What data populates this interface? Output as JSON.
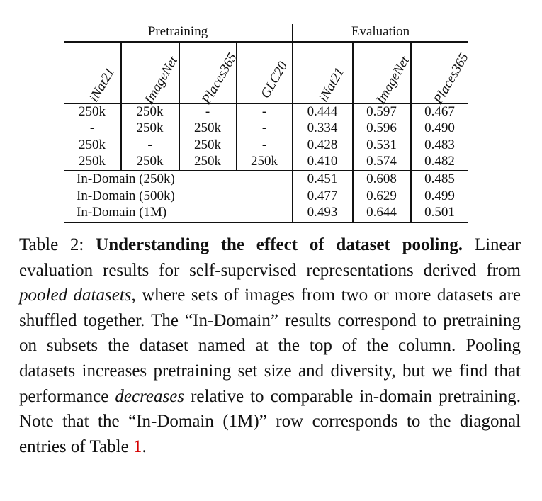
{
  "table": {
    "group_headers": {
      "pretraining": "Pretraining",
      "evaluation": "Evaluation"
    },
    "pretraining_columns": [
      "iNat21",
      "ImageNet",
      "Places365",
      "GLC20"
    ],
    "evaluation_columns": [
      "iNat21",
      "ImageNet",
      "Places365"
    ],
    "pooled_rows": [
      {
        "pretrain": [
          "250k",
          "250k",
          "-",
          "-"
        ],
        "eval": [
          "0.444",
          "0.597",
          "0.467"
        ]
      },
      {
        "pretrain": [
          "-",
          "250k",
          "250k",
          "-"
        ],
        "eval": [
          "0.334",
          "0.596",
          "0.490"
        ]
      },
      {
        "pretrain": [
          "250k",
          "-",
          "250k",
          "-"
        ],
        "eval": [
          "0.428",
          "0.531",
          "0.483"
        ]
      },
      {
        "pretrain": [
          "250k",
          "250k",
          "250k",
          "250k"
        ],
        "eval": [
          "0.410",
          "0.574",
          "0.482"
        ]
      }
    ],
    "in_domain_rows": [
      {
        "label": "In-Domain (250k)",
        "eval": [
          "0.451",
          "0.608",
          "0.485"
        ]
      },
      {
        "label": "In-Domain (500k)",
        "eval": [
          "0.477",
          "0.629",
          "0.499"
        ]
      },
      {
        "label": "In-Domain (1M)",
        "eval": [
          "0.493",
          "0.644",
          "0.501"
        ]
      }
    ]
  },
  "caption": {
    "label": "Table 2:",
    "bold_title": "Understanding the effect of dataset pooling.",
    "text_1": "Linear evaluation results for self-supervised representations derived from",
    "italic_1": "pooled datasets",
    "text_2": ", where sets of images from two or more datasets are shuffled together. The “In-Domain” results correspond to pretraining on subsets the dataset named at the top of the column. Pooling datasets increases pretraining set size and diversity, but we find that performance",
    "italic_2": "decreases",
    "text_3": "relative to comparable in-domain pretraining.  Note that the “In-Domain (1M)” row corresponds to the diagonal entries of Table",
    "table_ref": "1",
    "text_end": "."
  }
}
